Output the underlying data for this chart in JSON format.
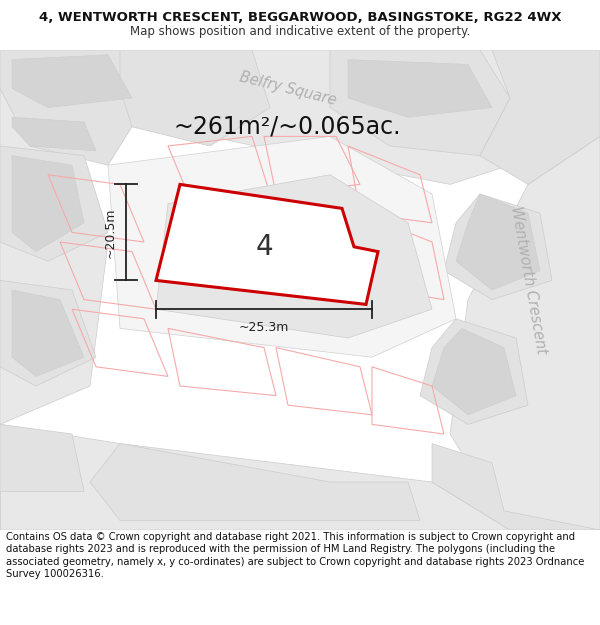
{
  "title_line1": "4, WENTWORTH CRESCENT, BEGGARWOOD, BASINGSTOKE, RG22 4WX",
  "title_line2": "Map shows position and indicative extent of the property.",
  "area_text": "~261m²/~0.065ac.",
  "dim_width": "~25.3m",
  "dim_height": "~20.5m",
  "plot_number": "4",
  "footer_text": "Contains OS data © Crown copyright and database right 2021. This information is subject to Crown copyright and database rights 2023 and is reproduced with the permission of HM Land Registry. The polygons (including the associated geometry, namely x, y co-ordinates) are subject to Crown copyright and database rights 2023 Ordnance Survey 100026316.",
  "title_fontsize": 9.5,
  "subtitle_fontsize": 8.5,
  "footer_fontsize": 7.2,
  "area_fontsize": 17,
  "plot_label_fontsize": 20,
  "dim_fontsize": 9,
  "road_label_fontsize": 10.5,
  "map_bg": "#f0f0f0",
  "block_light": "#e2e2e2",
  "block_dark": "#d4d4d4",
  "road_stripe": "#e8e8e8",
  "plot_bg": "#f5f5f5",
  "plot_outline": "#cc0000",
  "neighbor_outline": "#f5aaaa",
  "dim_color": "#222222",
  "road_label_color": "#b0b0b0",
  "text_dark": "#111111",
  "text_mid": "#333333"
}
